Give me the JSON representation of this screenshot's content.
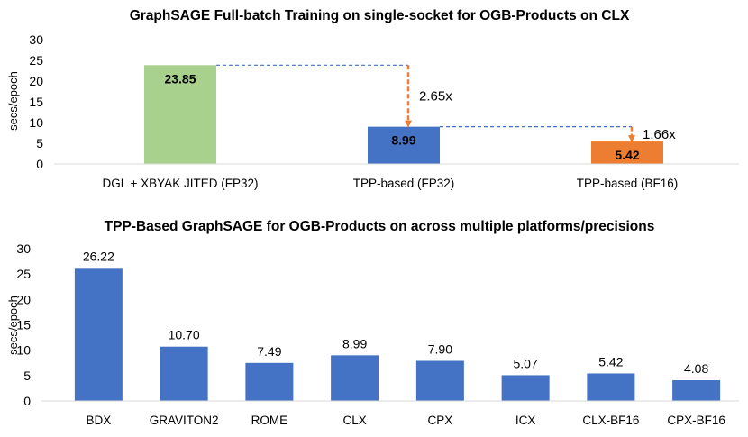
{
  "chart_data": [
    {
      "type": "bar",
      "title": "GraphSAGE Full-batch Training on single-socket for OGB-Products on CLX",
      "xlabel": "",
      "ylabel": "secs/epoch",
      "ylim": [
        0,
        30
      ],
      "yticks": [
        0,
        5,
        10,
        15,
        20,
        25,
        30
      ],
      "categories": [
        "DGL + XBYAK JITED (FP32)",
        "TPP-based (FP32)",
        "TPP-based (BF16)"
      ],
      "values": [
        23.85,
        8.99,
        5.42
      ],
      "labels": [
        "23.85",
        "8.99",
        "5.42"
      ],
      "colors": [
        "#a9d18e",
        "#4472c4",
        "#ed7d31"
      ],
      "grid": false,
      "annotations": [
        {
          "text": "2.65x",
          "from": 0,
          "to": 1
        },
        {
          "text": "1.66x",
          "from": 1,
          "to": 2
        }
      ]
    },
    {
      "type": "bar",
      "title": "TPP-Based GraphSAGE for OGB-Products on across multiple platforms/precisions",
      "xlabel": "",
      "ylabel": "secs/epoch",
      "ylim": [
        0,
        30
      ],
      "yticks": [
        0,
        5,
        10,
        15,
        20,
        25,
        30
      ],
      "categories": [
        "BDX",
        "GRAVITON2",
        "ROME",
        "CLX",
        "CPX",
        "ICX",
        "CLX-BF16",
        "CPX-BF16"
      ],
      "values": [
        26.22,
        10.7,
        7.49,
        8.99,
        7.9,
        5.07,
        5.42,
        4.08
      ],
      "labels": [
        "26.22",
        "10.70",
        "7.49",
        "8.99",
        "7.90",
        "5.07",
        "5.42",
        "4.08"
      ],
      "color": "#4472c4",
      "grid": false
    }
  ]
}
